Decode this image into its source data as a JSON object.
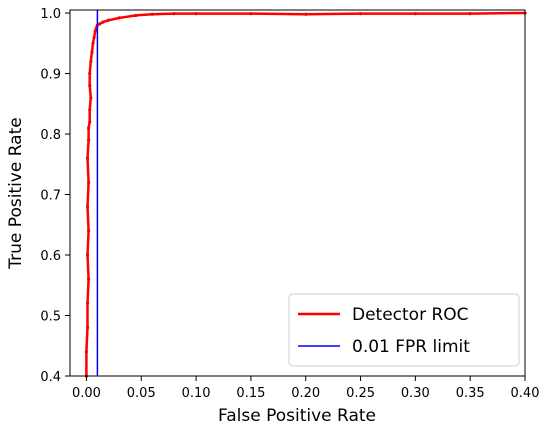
{
  "chart_data": {
    "type": "line",
    "title": "",
    "xlabel": "False Positive Rate",
    "ylabel": "True Positive Rate",
    "xlim": [
      -0.015,
      0.4
    ],
    "ylim": [
      0.4,
      1.005
    ],
    "x_ticks": [
      0.0,
      0.05,
      0.1,
      0.15,
      0.2,
      0.25,
      0.3,
      0.35,
      0.4
    ],
    "x_tick_labels": [
      "0.00",
      "0.05",
      "0.10",
      "0.15",
      "0.20",
      "0.25",
      "0.30",
      "0.35",
      "0.40"
    ],
    "y_ticks": [
      0.4,
      0.5,
      0.6,
      0.7,
      0.8,
      0.9,
      1.0
    ],
    "y_tick_labels": [
      "0.4",
      "0.5",
      "0.6",
      "0.7",
      "0.8",
      "0.9",
      "1.0"
    ],
    "grid": false,
    "legend_position": "lower right",
    "series": [
      {
        "name": "Detector ROC",
        "color": "#ff0000",
        "marker": "dot",
        "x": [
          0.0,
          0.0,
          0.001,
          0.001,
          0.002,
          0.001,
          0.002,
          0.001,
          0.002,
          0.001,
          0.002,
          0.002,
          0.003,
          0.003,
          0.004,
          0.003,
          0.003,
          0.004,
          0.005,
          0.006,
          0.007,
          0.008,
          0.009,
          0.01,
          0.012,
          0.015,
          0.02,
          0.03,
          0.045,
          0.06,
          0.08,
          0.1,
          0.15,
          0.2,
          0.25,
          0.3,
          0.35,
          0.4
        ],
        "y": [
          0.4,
          0.44,
          0.48,
          0.52,
          0.56,
          0.6,
          0.64,
          0.68,
          0.72,
          0.76,
          0.79,
          0.81,
          0.82,
          0.84,
          0.86,
          0.88,
          0.9,
          0.92,
          0.935,
          0.95,
          0.96,
          0.97,
          0.975,
          0.98,
          0.982,
          0.985,
          0.988,
          0.992,
          0.996,
          0.998,
          0.999,
          0.999,
          0.999,
          0.998,
          0.999,
          0.999,
          0.999,
          1.0
        ]
      },
      {
        "name": "0.01 FPR limit",
        "color": "#0000ff",
        "marker": "none",
        "x": [
          0.01,
          0.01
        ],
        "y": [
          0.4,
          1.005
        ]
      }
    ]
  }
}
